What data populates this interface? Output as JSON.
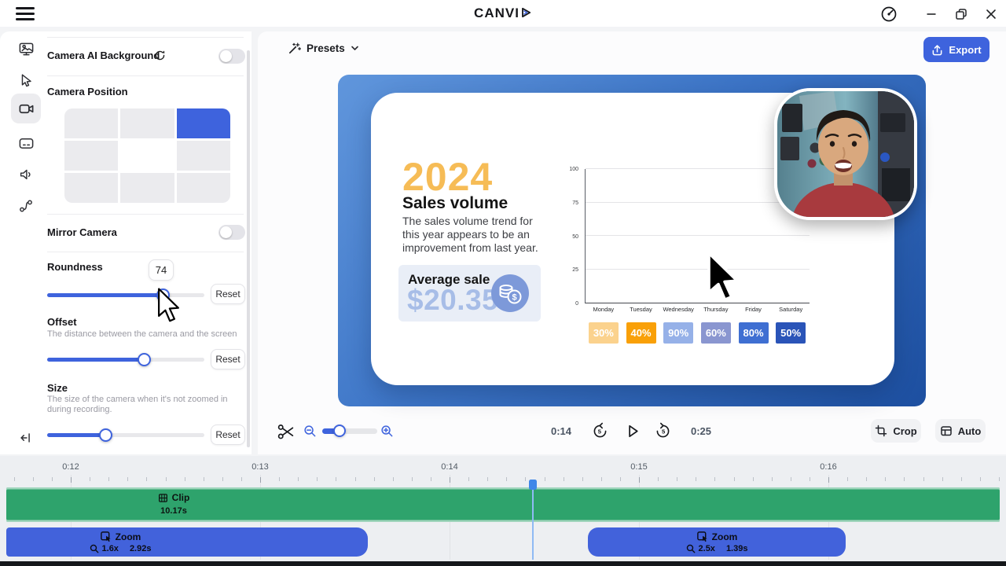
{
  "titlebar": {
    "logo_prefix": "CANVI"
  },
  "sidebar": {
    "tools": [
      "background",
      "cursor",
      "camera",
      "captions",
      "audio",
      "steps"
    ],
    "active_tool": "camera"
  },
  "panel": {
    "camera_ai_background": {
      "label": "Camera AI Background",
      "enabled": false
    },
    "camera_position": {
      "label": "Camera Position",
      "selected_index": 2
    },
    "mirror_camera": {
      "label": "Mirror Camera",
      "enabled": false
    },
    "roundness": {
      "label": "Roundness",
      "value": "74",
      "percent": 74,
      "reset_label": "Reset"
    },
    "offset": {
      "label": "Offset",
      "description": "The distance between the camera and the screen",
      "percent": 62,
      "reset_label": "Reset"
    },
    "size": {
      "label": "Size",
      "description": "The size of the camera when it's not zoomed in during recording.",
      "percent": 37.5,
      "reset_label": "Reset"
    }
  },
  "preview": {
    "presets_label": "Presets",
    "export_label": "Export",
    "slide": {
      "year": "2024",
      "title": "Sales volume",
      "body_lines": [
        "The sales volume trend for",
        "this year appears to be an",
        "improvement from last year."
      ],
      "average_label": "Average sale",
      "average_value": "$20.35"
    },
    "chart_data": {
      "type": "bar",
      "categories": [
        "Monday",
        "Tuesday",
        "Wednesday",
        "Thursday",
        "Friday",
        "Saturday"
      ],
      "values": [
        30,
        40,
        90,
        60,
        80,
        50
      ],
      "badges": [
        "30%",
        "40%",
        "90%",
        "60%",
        "80%",
        "50%"
      ],
      "bar_colors": [
        "#fbd28d",
        "#f9a008",
        "#96b1e8",
        "#8a96d0",
        "#3f6fd2",
        "#2a54b8"
      ],
      "title": "",
      "xlabel": "",
      "ylabel": "",
      "ylim": [
        0,
        100
      ],
      "yticks": [
        0,
        25,
        50,
        75,
        100
      ],
      "grid": true,
      "legend": false
    }
  },
  "transport": {
    "current_time": "0:14",
    "total_time": "0:25",
    "zoom_percent": 32,
    "crop_label": "Crop",
    "auto_label": "Auto"
  },
  "timeline": {
    "ruler_labels": [
      "0:12",
      "0:13",
      "0:14",
      "0:15",
      "0:16"
    ],
    "clip": {
      "label": "Clip",
      "duration": "10.17s"
    },
    "zoom_segments": [
      {
        "label": "Zoom",
        "factor": "1.6x",
        "duration": "2.92s"
      },
      {
        "label": "Zoom",
        "factor": "2.5x",
        "duration": "1.39s"
      }
    ]
  },
  "colors": {
    "accent": "#3e63dd",
    "clip_green": "#2ea36c",
    "zoom_blue": "#4262db",
    "canvas_gradient": [
      "#6096dc",
      "#1d4fa0"
    ],
    "year_orange": "#f6bc56",
    "average_value_blue": "#a7bde7"
  }
}
